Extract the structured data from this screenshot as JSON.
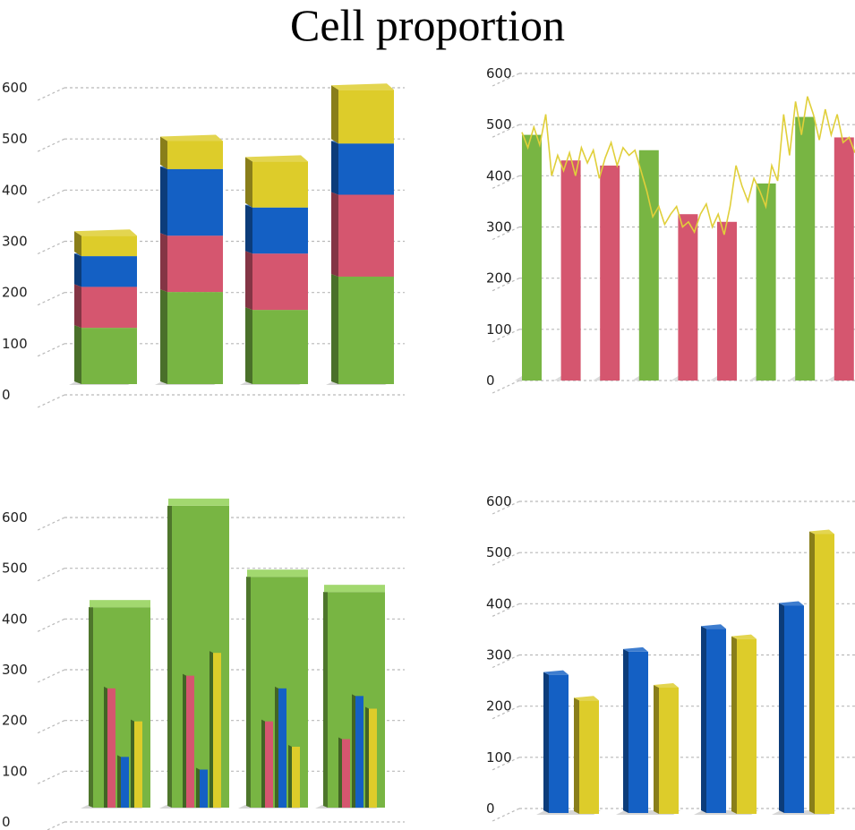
{
  "title": "Cell proportion",
  "colors": {
    "green": "#78b543",
    "pink": "#d5566f",
    "blue": "#1460c4",
    "yellow": "#ddcc2a",
    "line": "#e0cf3a",
    "grid": "#b9b9b9"
  },
  "chart_data": [
    {
      "type": "bar",
      "stacked": true,
      "yticks": [
        "0",
        "100",
        "200",
        "300",
        "400",
        "500",
        "600"
      ],
      "ylim": [
        0,
        600
      ],
      "grid": true,
      "series": [
        {
          "color": "green",
          "values": [
            110,
            180,
            145,
            210
          ]
        },
        {
          "color": "pink",
          "values": [
            80,
            110,
            110,
            160
          ]
        },
        {
          "color": "blue",
          "values": [
            60,
            130,
            90,
            100
          ]
        },
        {
          "color": "yellow",
          "values": [
            40,
            55,
            90,
            105
          ]
        }
      ]
    },
    {
      "type": "bar",
      "yticks": [
        "0",
        "100",
        "200",
        "300",
        "400",
        "500",
        "600"
      ],
      "ylim": [
        0,
        600
      ],
      "grid": true,
      "bars": [
        {
          "value": 480,
          "color": "green"
        },
        {
          "value": 430,
          "color": "pink"
        },
        {
          "value": 420,
          "color": "pink"
        },
        {
          "value": 450,
          "color": "green"
        },
        {
          "value": 325,
          "color": "pink"
        },
        {
          "value": 310,
          "color": "pink"
        },
        {
          "value": 385,
          "color": "green"
        },
        {
          "value": 515,
          "color": "green"
        },
        {
          "value": 475,
          "color": "pink"
        }
      ],
      "line": {
        "color": "line",
        "values": [
          485,
          455,
          495,
          460,
          520,
          400,
          440,
          410,
          445,
          400,
          455,
          425,
          450,
          395,
          435,
          465,
          420,
          455,
          440,
          450,
          410,
          370,
          320,
          340,
          305,
          325,
          340,
          300,
          310,
          290,
          325,
          345,
          300,
          325,
          285,
          340,
          420,
          380,
          350,
          395,
          370,
          340,
          420,
          390,
          520,
          440,
          545,
          480,
          555,
          520,
          470,
          530,
          480,
          520,
          465,
          475,
          445
        ]
      }
    },
    {
      "type": "bar",
      "yticks": [
        "0",
        "100",
        "200",
        "300",
        "400",
        "500",
        "600"
      ],
      "ylim": [
        0,
        600
      ],
      "grid": true,
      "groups": [
        {
          "total": 395,
          "pink": 235,
          "blue": 100,
          "yellow": 170
        },
        {
          "total": 595,
          "pink": 260,
          "blue": 75,
          "yellow": 305
        },
        {
          "total": 455,
          "pink": 170,
          "blue": 235,
          "yellow": 120
        },
        {
          "total": 425,
          "pink": 135,
          "blue": 220,
          "yellow": 195
        }
      ]
    },
    {
      "type": "bar",
      "yticks": [
        "0",
        "100",
        "200",
        "300",
        "400",
        "500",
        "600"
      ],
      "ylim": [
        0,
        600
      ],
      "grid": true,
      "pairs": [
        {
          "blue": 270,
          "yellow": 220
        },
        {
          "blue": 315,
          "yellow": 245
        },
        {
          "blue": 360,
          "yellow": 340
        },
        {
          "blue": 405,
          "yellow": 545
        }
      ]
    }
  ]
}
